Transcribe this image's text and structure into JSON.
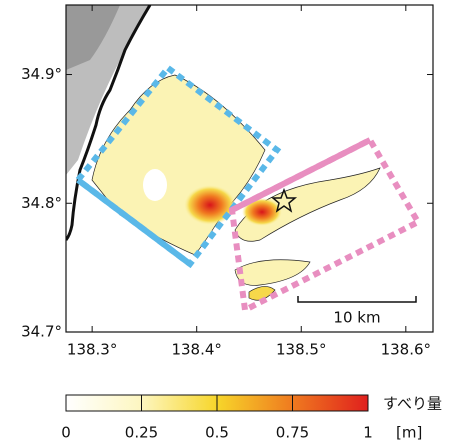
{
  "map": {
    "xlim": [
      138.275,
      138.626
    ],
    "ylim": [
      34.7,
      34.954
    ],
    "xticks": [
      {
        "value": 138.3,
        "label": "138.3°"
      },
      {
        "value": 138.4,
        "label": "138.4°"
      },
      {
        "value": 138.5,
        "label": "138.5°"
      },
      {
        "value": 138.6,
        "label": "138.6°"
      }
    ],
    "yticks": [
      {
        "value": 34.7,
        "label": "34.7°"
      },
      {
        "value": 34.8,
        "label": "34.8°"
      },
      {
        "value": 34.9,
        "label": "34.9°"
      }
    ],
    "scale_bar": "10 km",
    "colorbar": {
      "title": "すべり量",
      "unit": "[m]",
      "ticks": [
        0,
        0.25,
        0.5,
        0.75,
        1
      ]
    }
  }
}
